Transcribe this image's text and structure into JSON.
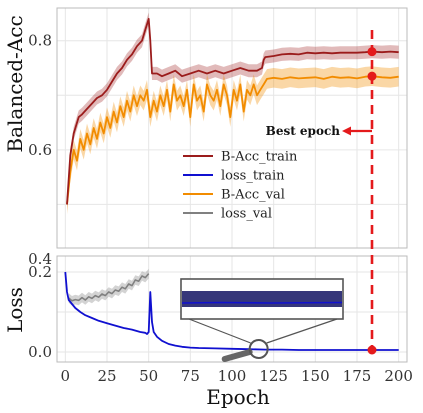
{
  "chart_data": {
    "type": "line",
    "xlabel": "Epoch",
    "upper_ylabel": "Balanced-Acc",
    "lower_ylabel": "Loss",
    "xlim": [
      -5,
      205
    ],
    "upper_ylim": [
      0.42,
      0.86
    ],
    "lower_ylim": [
      -0.025,
      0.24
    ],
    "x_ticks": [
      0,
      25,
      50,
      75,
      100,
      125,
      150,
      175,
      200
    ],
    "upper_y_ticks": [
      0.4,
      0.6,
      0.8
    ],
    "lower_y_ticks": [
      0.0,
      0.2
    ],
    "grid": true,
    "legend_position": "center",
    "legend": [
      "B-Acc_train",
      "loss_train",
      "B-Acc_val",
      "loss_val"
    ],
    "colors": {
      "bacc_train": "#9b1c1c",
      "loss_train": "#1010d0",
      "bacc_val": "#f28c00",
      "loss_val": "#808080",
      "best_epoch": "#e41a1c",
      "inset": "#555555"
    },
    "best_epoch": {
      "label": "Best epoch",
      "epoch": 184,
      "bacc_train": 0.78,
      "bacc_val": 0.735,
      "loss": 0.005
    },
    "series": [
      {
        "key": "bacc_train",
        "name": "B-Acc_train",
        "x": [
          1,
          3,
          5,
          8,
          10,
          13,
          16,
          19,
          22,
          25,
          28,
          31,
          34,
          37,
          40,
          43,
          46,
          48,
          50,
          51,
          52,
          55,
          58,
          62,
          66,
          70,
          75,
          80,
          85,
          90,
          95,
          100,
          105,
          110,
          115,
          118,
          119,
          120,
          125,
          130,
          135,
          140,
          145,
          150,
          155,
          160,
          165,
          170,
          175,
          180,
          184,
          190,
          195,
          200
        ],
        "y": [
          0.5,
          0.59,
          0.63,
          0.66,
          0.665,
          0.675,
          0.685,
          0.695,
          0.7,
          0.71,
          0.725,
          0.74,
          0.75,
          0.765,
          0.775,
          0.79,
          0.8,
          0.82,
          0.84,
          0.8,
          0.74,
          0.74,
          0.735,
          0.74,
          0.745,
          0.735,
          0.74,
          0.745,
          0.74,
          0.745,
          0.74,
          0.745,
          0.75,
          0.745,
          0.745,
          0.75,
          0.765,
          0.77,
          0.772,
          0.775,
          0.776,
          0.775,
          0.778,
          0.777,
          0.778,
          0.777,
          0.778,
          0.778,
          0.778,
          0.779,
          0.78,
          0.779,
          0.78,
          0.779
        ]
      },
      {
        "key": "bacc_val",
        "name": "B-Acc_val",
        "x": [
          1,
          3,
          5,
          7,
          9,
          11,
          13,
          15,
          17,
          19,
          21,
          23,
          25,
          27,
          29,
          31,
          33,
          35,
          37,
          39,
          41,
          43,
          45,
          47,
          49,
          51,
          53,
          55,
          57,
          59,
          61,
          63,
          65,
          67,
          69,
          71,
          73,
          75,
          77,
          79,
          81,
          83,
          85,
          87,
          89,
          91,
          93,
          95,
          97,
          99,
          101,
          103,
          105,
          107,
          109,
          111,
          113,
          115,
          117,
          119,
          121,
          125,
          130,
          135,
          140,
          145,
          150,
          155,
          160,
          165,
          170,
          175,
          180,
          184,
          190,
          195,
          200
        ],
        "y": [
          0.5,
          0.56,
          0.6,
          0.58,
          0.62,
          0.6,
          0.63,
          0.61,
          0.64,
          0.62,
          0.65,
          0.63,
          0.66,
          0.64,
          0.67,
          0.65,
          0.68,
          0.66,
          0.69,
          0.67,
          0.7,
          0.68,
          0.7,
          0.69,
          0.71,
          0.66,
          0.69,
          0.67,
          0.7,
          0.68,
          0.71,
          0.67,
          0.72,
          0.69,
          0.7,
          0.68,
          0.71,
          0.66,
          0.72,
          0.69,
          0.7,
          0.67,
          0.72,
          0.7,
          0.69,
          0.71,
          0.68,
          0.72,
          0.7,
          0.66,
          0.71,
          0.69,
          0.72,
          0.67,
          0.71,
          0.7,
          0.72,
          0.7,
          0.71,
          0.72,
          0.73,
          0.732,
          0.73,
          0.733,
          0.731,
          0.732,
          0.733,
          0.73,
          0.734,
          0.732,
          0.733,
          0.731,
          0.734,
          0.735,
          0.733,
          0.732,
          0.734
        ]
      },
      {
        "key": "loss_train",
        "name": "loss_train",
        "x": [
          0,
          1,
          2,
          4,
          6,
          9,
          12,
          16,
          20,
          25,
          30,
          35,
          40,
          45,
          48,
          49,
          50,
          51,
          52,
          53,
          55,
          58,
          62,
          66,
          70,
          75,
          80,
          90,
          100,
          110,
          120,
          130,
          140,
          150,
          160,
          170,
          180,
          190,
          200
        ],
        "y": [
          0.2,
          0.15,
          0.13,
          0.12,
          0.11,
          0.1,
          0.092,
          0.085,
          0.078,
          0.072,
          0.066,
          0.06,
          0.056,
          0.05,
          0.048,
          0.045,
          0.05,
          0.15,
          0.075,
          0.05,
          0.038,
          0.028,
          0.02,
          0.016,
          0.013,
          0.011,
          0.01,
          0.009,
          0.008,
          0.007,
          0.006,
          0.006,
          0.005,
          0.005,
          0.005,
          0.005,
          0.005,
          0.005,
          0.005
        ]
      },
      {
        "key": "loss_val",
        "name": "loss_val",
        "x": [
          2,
          4,
          6,
          8,
          10,
          12,
          14,
          16,
          18,
          20,
          22,
          24,
          26,
          28,
          30,
          32,
          34,
          36,
          38,
          40,
          42,
          44,
          46,
          48,
          50
        ],
        "y": [
          0.135,
          0.128,
          0.131,
          0.129,
          0.136,
          0.13,
          0.138,
          0.134,
          0.141,
          0.137,
          0.145,
          0.141,
          0.15,
          0.146,
          0.155,
          0.152,
          0.162,
          0.158,
          0.17,
          0.166,
          0.18,
          0.177,
          0.19,
          0.186,
          0.196
        ]
      }
    ]
  }
}
